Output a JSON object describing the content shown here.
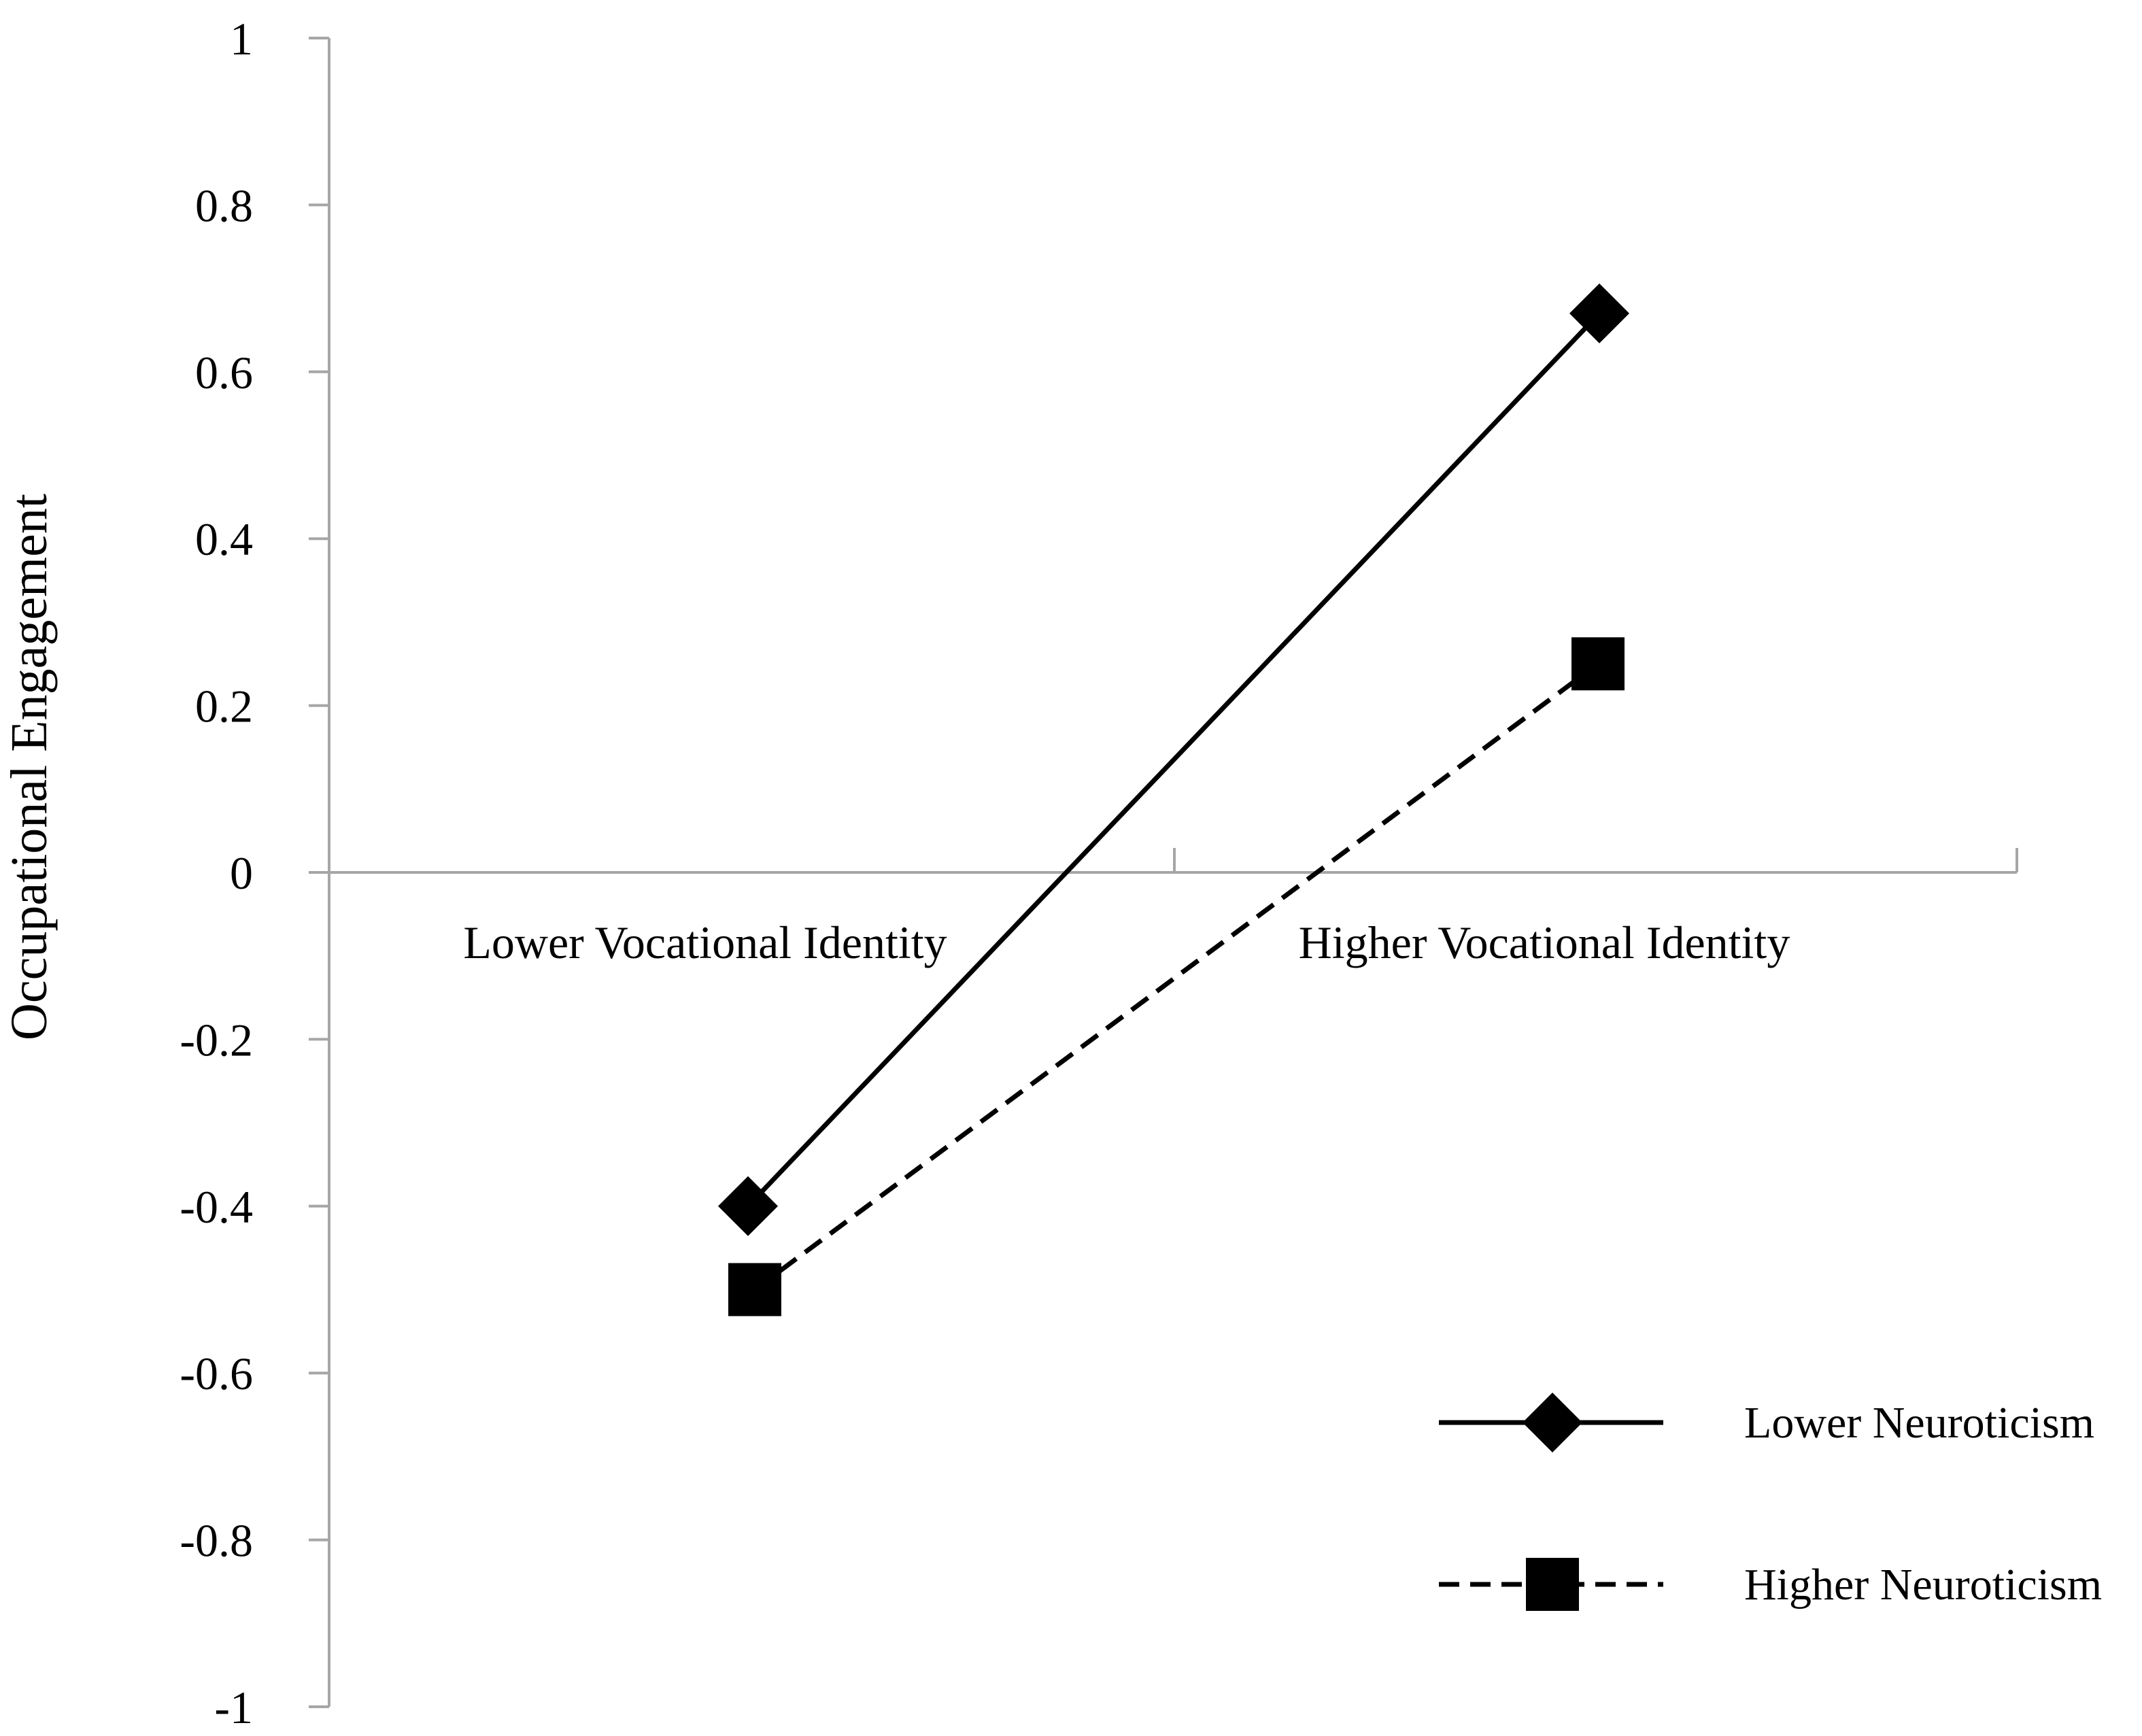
{
  "chart_data": {
    "type": "line",
    "title": "",
    "xlabel": "",
    "ylabel": "Occupational Engagement",
    "categories": [
      "Lower Vocational Identity",
      "Higher Vocational Identity"
    ],
    "ylim": [
      -1,
      1
    ],
    "yticks": [
      1,
      0.8,
      0.6,
      0.4,
      0.2,
      0,
      -0.2,
      -0.4,
      -0.6,
      -0.8,
      -1
    ],
    "ytick_labels": [
      "1",
      "0.8",
      "0.6",
      "0.4",
      "0.2",
      "0",
      "-0.2",
      "-0.4",
      "-0.6",
      "-0.8",
      "-1"
    ],
    "grid": false,
    "legend_position": "bottom-right",
    "series": [
      {
        "name": "Lower Neuroticism",
        "values": [
          -0.4,
          0.67
        ],
        "marker": "diamond",
        "line_style": "solid",
        "color": "#000000"
      },
      {
        "name": "Higher Neuroticism",
        "values": [
          -0.5,
          0.25
        ],
        "marker": "square",
        "line_style": "dashed",
        "color": "#000000"
      }
    ],
    "axis_color": "#a6a6a6"
  }
}
